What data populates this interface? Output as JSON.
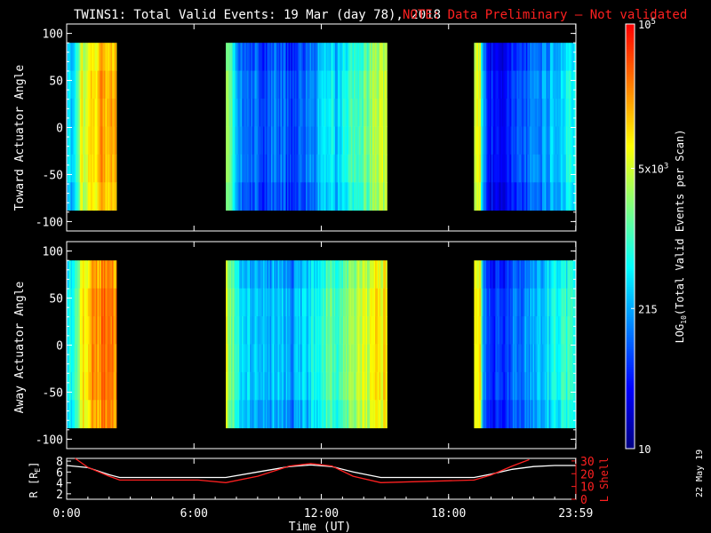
{
  "header": {
    "title": "TWINS1: Total Valid Events: 19 Mar (day  78), 2018",
    "note": "NOTE: Data Preliminary — Not validated"
  },
  "colors": {
    "background": "#000000",
    "axes": "#ffffff",
    "note": "#ff2020",
    "r_line": "#ffffff",
    "lshell_line": "#ff2020",
    "colormap": [
      "#00007f",
      "#0000ff",
      "#007fff",
      "#00ffff",
      "#7fff7f",
      "#ffff00",
      "#ff7f00",
      "#ff0000"
    ]
  },
  "chart_data": [
    {
      "type": "heatmap",
      "panel": "top",
      "ylabel": "Toward Actuator Angle",
      "ylim": [
        -110,
        110
      ],
      "yticks": [
        100,
        50,
        0,
        -50,
        -100
      ],
      "angle_range": [
        -88,
        90
      ],
      "xlim": [
        0,
        24
      ],
      "x_unit": "hours UT",
      "blocks": [
        {
          "start": 0.0,
          "end": 2.35,
          "profile": [
            [
              0.0,
              0.35
            ],
            [
              0.12,
              0.42
            ],
            [
              0.25,
              0.38
            ],
            [
              0.4,
              0.5
            ],
            [
              0.55,
              0.58
            ],
            [
              0.7,
              0.72
            ],
            [
              0.85,
              0.62
            ],
            [
              1.0,
              0.78
            ],
            [
              1.15,
              0.82
            ],
            [
              1.3,
              0.74
            ],
            [
              1.5,
              0.8
            ],
            [
              1.8,
              0.82
            ],
            [
              2.1,
              0.81
            ],
            [
              2.35,
              0.8
            ]
          ]
        },
        {
          "start": 7.5,
          "end": 15.1,
          "profile": [
            [
              7.5,
              0.62
            ],
            [
              7.7,
              0.55
            ],
            [
              7.9,
              0.4
            ],
            [
              8.2,
              0.3
            ],
            [
              8.6,
              0.28
            ],
            [
              9.0,
              0.26
            ],
            [
              9.4,
              0.24
            ],
            [
              9.8,
              0.28
            ],
            [
              10.2,
              0.26
            ],
            [
              10.5,
              0.22
            ],
            [
              10.8,
              0.25
            ],
            [
              11.2,
              0.27
            ],
            [
              11.6,
              0.3
            ],
            [
              12.0,
              0.36
            ],
            [
              12.3,
              0.45
            ],
            [
              12.6,
              0.38
            ],
            [
              13.0,
              0.42
            ],
            [
              13.4,
              0.48
            ],
            [
              13.8,
              0.52
            ],
            [
              14.2,
              0.58
            ],
            [
              14.6,
              0.64
            ],
            [
              15.1,
              0.68
            ]
          ]
        },
        {
          "start": 19.2,
          "end": 23.99,
          "profile": [
            [
              19.2,
              0.65
            ],
            [
              19.45,
              0.72
            ],
            [
              19.6,
              0.28
            ],
            [
              19.9,
              0.18
            ],
            [
              20.2,
              0.15
            ],
            [
              20.5,
              0.16
            ],
            [
              20.8,
              0.18
            ],
            [
              21.1,
              0.24
            ],
            [
              21.4,
              0.22
            ],
            [
              21.8,
              0.28
            ],
            [
              22.2,
              0.3
            ],
            [
              22.6,
              0.34
            ],
            [
              23.0,
              0.38
            ],
            [
              23.5,
              0.42
            ],
            [
              23.99,
              0.45
            ]
          ]
        }
      ]
    },
    {
      "type": "heatmap",
      "panel": "bottom",
      "ylabel": "Away Actuator Angle",
      "ylim": [
        -110,
        110
      ],
      "yticks": [
        100,
        50,
        0,
        -50,
        -100
      ],
      "angle_range": [
        -88,
        90
      ],
      "xlim": [
        0,
        24
      ],
      "x_unit": "hours UT",
      "blocks": [
        {
          "start": 0.0,
          "end": 2.35,
          "profile": [
            [
              0.0,
              0.4
            ],
            [
              0.15,
              0.46
            ],
            [
              0.3,
              0.44
            ],
            [
              0.45,
              0.56
            ],
            [
              0.6,
              0.64
            ],
            [
              0.75,
              0.76
            ],
            [
              0.9,
              0.7
            ],
            [
              1.05,
              0.82
            ],
            [
              1.2,
              0.86
            ],
            [
              1.4,
              0.84
            ],
            [
              1.7,
              0.87
            ],
            [
              2.0,
              0.86
            ],
            [
              2.35,
              0.85
            ]
          ]
        },
        {
          "start": 7.5,
          "end": 15.1,
          "profile": [
            [
              7.5,
              0.68
            ],
            [
              7.7,
              0.6
            ],
            [
              7.9,
              0.48
            ],
            [
              8.2,
              0.4
            ],
            [
              8.6,
              0.38
            ],
            [
              9.0,
              0.36
            ],
            [
              9.4,
              0.34
            ],
            [
              9.8,
              0.38
            ],
            [
              10.2,
              0.36
            ],
            [
              10.5,
              0.3
            ],
            [
              10.8,
              0.34
            ],
            [
              11.2,
              0.38
            ],
            [
              11.6,
              0.42
            ],
            [
              12.0,
              0.46
            ],
            [
              12.3,
              0.55
            ],
            [
              12.6,
              0.5
            ],
            [
              13.0,
              0.55
            ],
            [
              13.4,
              0.6
            ],
            [
              13.8,
              0.64
            ],
            [
              14.2,
              0.68
            ],
            [
              14.6,
              0.72
            ],
            [
              15.1,
              0.74
            ]
          ]
        },
        {
          "start": 19.2,
          "end": 23.99,
          "profile": [
            [
              19.2,
              0.72
            ],
            [
              19.45,
              0.76
            ],
            [
              19.6,
              0.34
            ],
            [
              19.9,
              0.22
            ],
            [
              20.2,
              0.2
            ],
            [
              20.5,
              0.2
            ],
            [
              20.8,
              0.24
            ],
            [
              21.1,
              0.3
            ],
            [
              21.4,
              0.28
            ],
            [
              21.8,
              0.34
            ],
            [
              22.2,
              0.36
            ],
            [
              22.6,
              0.4
            ],
            [
              23.0,
              0.44
            ],
            [
              23.5,
              0.48
            ],
            [
              23.99,
              0.5
            ]
          ]
        }
      ]
    },
    {
      "type": "line",
      "panel": "orbit",
      "ylabel_left": "R [R",
      "ylabel_left_sub": "E",
      "ylabel_left_close": "]",
      "ylabel_right": "L Shell",
      "ylim_left": [
        1,
        8.5
      ],
      "ylim_right": [
        0,
        32
      ],
      "yticks_left": [
        8,
        6,
        4,
        2
      ],
      "yticks_right": [
        30,
        20,
        10,
        0
      ],
      "xlim": [
        0,
        24
      ],
      "series": [
        {
          "axis": "left",
          "x": [
            0,
            1,
            2,
            2.5,
            7.5,
            9,
            10.5,
            11.5,
            12.5,
            13.5,
            14.8,
            19.2,
            20,
            21,
            22,
            23,
            24
          ],
          "y": [
            7.2,
            6.8,
            5.5,
            5.0,
            5.0,
            6.0,
            7.0,
            7.3,
            7.0,
            6.0,
            5.0,
            5.0,
            5.6,
            6.5,
            7.0,
            7.2,
            7.2
          ]
        },
        {
          "axis": "right",
          "x": [
            0.4,
            1,
            2,
            2.5,
            6.2,
            7.5,
            9,
            10.5,
            11.5,
            12.5,
            13.5,
            14.8,
            19.2,
            20,
            21,
            21.8
          ],
          "y": [
            32,
            25,
            18,
            15,
            15,
            13,
            18,
            26,
            28,
            26,
            18,
            13,
            15,
            19,
            26,
            31
          ]
        }
      ]
    }
  ],
  "x_axis": {
    "label": "Time (UT)",
    "ticks": [
      {
        "v": 0,
        "label": "0:00"
      },
      {
        "v": 6,
        "label": "6:00"
      },
      {
        "v": 12,
        "label": "12:00"
      },
      {
        "v": 18,
        "label": "18:00"
      },
      {
        "v": 23.99,
        "label": "23:59"
      }
    ]
  },
  "colorbar": {
    "label_main": "LOG",
    "label_sub": "10",
    "label_rest": "(Total Valid Events per Scan)",
    "ticks": [
      {
        "frac": 1.0,
        "base": "10",
        "exp": "5"
      },
      {
        "frac": 0.66,
        "base": "5x10",
        "exp": "3"
      },
      {
        "frac": 0.33,
        "base": "215",
        "exp": ""
      },
      {
        "frac": 0.0,
        "base": "10",
        "exp": ""
      }
    ]
  },
  "date_stamp": "22 May 19"
}
